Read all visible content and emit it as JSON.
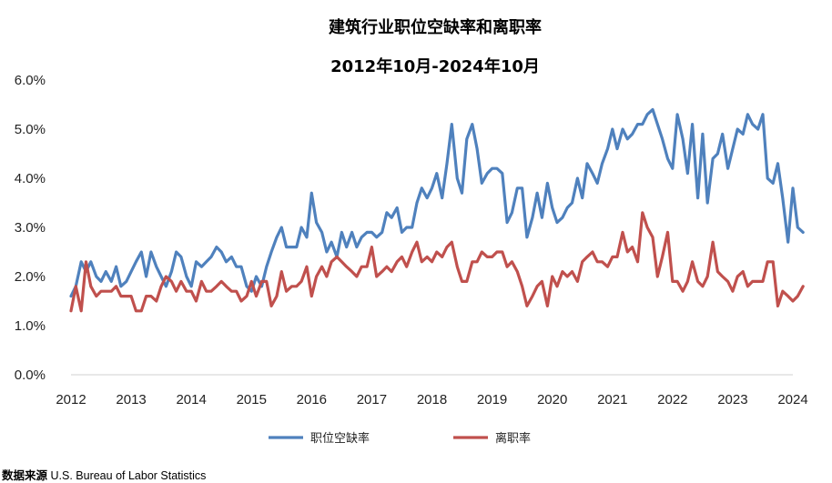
{
  "chart_data": {
    "type": "line",
    "title": "建筑行业职位空缺率和离职率",
    "subtitle": "2012年10月-2024年10月",
    "x_ticks": [
      "2012",
      "2013",
      "2014",
      "2015",
      "2016",
      "2017",
      "2018",
      "2019",
      "2020",
      "2021",
      "2022",
      "2023",
      "2024"
    ],
    "y_ticks": [
      "0.0%",
      "1.0%",
      "2.0%",
      "3.0%",
      "4.0%",
      "5.0%",
      "6.0%"
    ],
    "xlim": [
      2012.0,
      2024.0
    ],
    "ylim": [
      0,
      6
    ],
    "y_unit": "%",
    "grid": false,
    "legend_position": "bottom",
    "series": [
      {
        "name": "职位空缺率",
        "color": "#4F81BD",
        "points": [
          [
            2012.0,
            1.6
          ],
          [
            2012.08,
            1.8
          ],
          [
            2012.17,
            2.3
          ],
          [
            2012.25,
            2.1
          ],
          [
            2012.33,
            2.3
          ],
          [
            2012.42,
            2.0
          ],
          [
            2012.5,
            1.9
          ],
          [
            2012.58,
            2.1
          ],
          [
            2012.67,
            1.9
          ],
          [
            2012.75,
            2.2
          ],
          [
            2012.83,
            1.8
          ],
          [
            2012.92,
            1.9
          ],
          [
            2013.0,
            2.1
          ],
          [
            2013.08,
            2.3
          ],
          [
            2013.17,
            2.5
          ],
          [
            2013.25,
            2.0
          ],
          [
            2013.33,
            2.5
          ],
          [
            2013.42,
            2.2
          ],
          [
            2013.5,
            2.0
          ],
          [
            2013.58,
            1.8
          ],
          [
            2013.67,
            2.1
          ],
          [
            2013.75,
            2.5
          ],
          [
            2013.83,
            2.4
          ],
          [
            2013.92,
            2.0
          ],
          [
            2014.0,
            1.8
          ],
          [
            2014.08,
            2.3
          ],
          [
            2014.17,
            2.2
          ],
          [
            2014.25,
            2.3
          ],
          [
            2014.33,
            2.4
          ],
          [
            2014.42,
            2.6
          ],
          [
            2014.5,
            2.5
          ],
          [
            2014.58,
            2.3
          ],
          [
            2014.67,
            2.4
          ],
          [
            2014.75,
            2.2
          ],
          [
            2014.83,
            2.2
          ],
          [
            2014.92,
            1.8
          ],
          [
            2015.0,
            1.7
          ],
          [
            2015.08,
            2.0
          ],
          [
            2015.17,
            1.8
          ],
          [
            2015.25,
            2.2
          ],
          [
            2015.33,
            2.5
          ],
          [
            2015.42,
            2.8
          ],
          [
            2015.5,
            3.0
          ],
          [
            2015.58,
            2.6
          ],
          [
            2015.67,
            2.6
          ],
          [
            2015.75,
            2.6
          ],
          [
            2015.83,
            3.0
          ],
          [
            2015.92,
            2.8
          ],
          [
            2016.0,
            3.7
          ],
          [
            2016.08,
            3.1
          ],
          [
            2016.17,
            2.9
          ],
          [
            2016.25,
            2.5
          ],
          [
            2016.33,
            2.7
          ],
          [
            2016.42,
            2.4
          ],
          [
            2016.5,
            2.9
          ],
          [
            2016.58,
            2.6
          ],
          [
            2016.67,
            2.9
          ],
          [
            2016.75,
            2.6
          ],
          [
            2016.83,
            2.8
          ],
          [
            2016.92,
            2.9
          ],
          [
            2017.0,
            2.9
          ],
          [
            2017.08,
            2.8
          ],
          [
            2017.17,
            2.9
          ],
          [
            2017.25,
            3.3
          ],
          [
            2017.33,
            3.2
          ],
          [
            2017.42,
            3.4
          ],
          [
            2017.5,
            2.9
          ],
          [
            2017.58,
            3.0
          ],
          [
            2017.67,
            3.0
          ],
          [
            2017.75,
            3.5
          ],
          [
            2017.83,
            3.8
          ],
          [
            2017.92,
            3.6
          ],
          [
            2018.0,
            3.8
          ],
          [
            2018.08,
            4.1
          ],
          [
            2018.17,
            3.6
          ],
          [
            2018.25,
            4.3
          ],
          [
            2018.33,
            5.1
          ],
          [
            2018.42,
            4.0
          ],
          [
            2018.5,
            3.7
          ],
          [
            2018.58,
            4.8
          ],
          [
            2018.67,
            5.1
          ],
          [
            2018.75,
            4.6
          ],
          [
            2018.83,
            3.9
          ],
          [
            2018.92,
            4.1
          ],
          [
            2019.0,
            4.2
          ],
          [
            2019.08,
            4.2
          ],
          [
            2019.17,
            4.1
          ],
          [
            2019.25,
            3.1
          ],
          [
            2019.33,
            3.3
          ],
          [
            2019.42,
            3.8
          ],
          [
            2019.5,
            3.8
          ],
          [
            2019.58,
            2.8
          ],
          [
            2019.67,
            3.2
          ],
          [
            2019.75,
            3.7
          ],
          [
            2019.83,
            3.2
          ],
          [
            2019.92,
            3.9
          ],
          [
            2020.0,
            3.4
          ],
          [
            2020.08,
            3.1
          ],
          [
            2020.17,
            3.2
          ],
          [
            2020.25,
            3.4
          ],
          [
            2020.33,
            3.5
          ],
          [
            2020.42,
            4.0
          ],
          [
            2020.5,
            3.6
          ],
          [
            2020.58,
            4.3
          ],
          [
            2020.67,
            4.1
          ],
          [
            2020.75,
            3.9
          ],
          [
            2020.83,
            4.3
          ],
          [
            2020.92,
            4.6
          ],
          [
            2021.0,
            5.0
          ],
          [
            2021.08,
            4.6
          ],
          [
            2021.17,
            5.0
          ],
          [
            2021.25,
            4.8
          ],
          [
            2021.33,
            4.9
          ],
          [
            2021.42,
            5.1
          ],
          [
            2021.5,
            5.1
          ],
          [
            2021.58,
            5.3
          ],
          [
            2021.67,
            5.4
          ],
          [
            2021.75,
            5.1
          ],
          [
            2021.83,
            4.8
          ],
          [
            2021.92,
            4.4
          ],
          [
            2022.0,
            4.2
          ],
          [
            2022.08,
            5.3
          ],
          [
            2022.17,
            4.8
          ],
          [
            2022.25,
            4.1
          ],
          [
            2022.33,
            5.1
          ],
          [
            2022.42,
            3.6
          ],
          [
            2022.5,
            4.9
          ],
          [
            2022.58,
            3.5
          ],
          [
            2022.67,
            4.4
          ],
          [
            2022.75,
            4.5
          ],
          [
            2022.83,
            4.9
          ],
          [
            2022.92,
            4.2
          ],
          [
            2023.0,
            4.6
          ],
          [
            2023.08,
            5.0
          ],
          [
            2023.17,
            4.9
          ],
          [
            2023.25,
            5.3
          ],
          [
            2023.33,
            5.1
          ],
          [
            2023.42,
            5.0
          ],
          [
            2023.5,
            5.3
          ],
          [
            2023.58,
            4.0
          ],
          [
            2023.67,
            3.9
          ],
          [
            2023.75,
            4.3
          ],
          [
            2023.83,
            3.6
          ],
          [
            2023.92,
            2.7
          ],
          [
            2024.0,
            3.8
          ],
          [
            2024.08,
            3.0
          ],
          [
            2024.17,
            2.9
          ]
        ]
      },
      {
        "name": "离职率",
        "color": "#C0504D",
        "points": [
          [
            2012.0,
            1.3
          ],
          [
            2012.08,
            1.8
          ],
          [
            2012.17,
            1.3
          ],
          [
            2012.25,
            2.3
          ],
          [
            2012.33,
            1.8
          ],
          [
            2012.42,
            1.6
          ],
          [
            2012.5,
            1.7
          ],
          [
            2012.58,
            1.7
          ],
          [
            2012.67,
            1.7
          ],
          [
            2012.75,
            1.8
          ],
          [
            2012.83,
            1.6
          ],
          [
            2012.92,
            1.6
          ],
          [
            2013.0,
            1.6
          ],
          [
            2013.08,
            1.3
          ],
          [
            2013.17,
            1.3
          ],
          [
            2013.25,
            1.6
          ],
          [
            2013.33,
            1.6
          ],
          [
            2013.42,
            1.5
          ],
          [
            2013.5,
            1.8
          ],
          [
            2013.58,
            2.0
          ],
          [
            2013.67,
            1.9
          ],
          [
            2013.75,
            1.7
          ],
          [
            2013.83,
            1.9
          ],
          [
            2013.92,
            1.7
          ],
          [
            2014.0,
            1.7
          ],
          [
            2014.08,
            1.5
          ],
          [
            2014.17,
            1.9
          ],
          [
            2014.25,
            1.7
          ],
          [
            2014.33,
            1.7
          ],
          [
            2014.42,
            1.8
          ],
          [
            2014.5,
            1.9
          ],
          [
            2014.58,
            1.8
          ],
          [
            2014.67,
            1.7
          ],
          [
            2014.75,
            1.7
          ],
          [
            2014.83,
            1.5
          ],
          [
            2014.92,
            1.6
          ],
          [
            2015.0,
            1.9
          ],
          [
            2015.08,
            1.6
          ],
          [
            2015.17,
            1.9
          ],
          [
            2015.25,
            1.9
          ],
          [
            2015.33,
            1.4
          ],
          [
            2015.42,
            1.6
          ],
          [
            2015.5,
            2.1
          ],
          [
            2015.58,
            1.7
          ],
          [
            2015.67,
            1.8
          ],
          [
            2015.75,
            1.8
          ],
          [
            2015.83,
            1.9
          ],
          [
            2015.92,
            2.2
          ],
          [
            2016.0,
            1.6
          ],
          [
            2016.08,
            2.0
          ],
          [
            2016.17,
            2.2
          ],
          [
            2016.25,
            2.0
          ],
          [
            2016.33,
            2.3
          ],
          [
            2016.42,
            2.4
          ],
          [
            2016.5,
            2.3
          ],
          [
            2016.58,
            2.2
          ],
          [
            2016.67,
            2.1
          ],
          [
            2016.75,
            2.0
          ],
          [
            2016.83,
            2.2
          ],
          [
            2016.92,
            2.2
          ],
          [
            2017.0,
            2.6
          ],
          [
            2017.08,
            2.0
          ],
          [
            2017.17,
            2.1
          ],
          [
            2017.25,
            2.2
          ],
          [
            2017.33,
            2.1
          ],
          [
            2017.42,
            2.3
          ],
          [
            2017.5,
            2.4
          ],
          [
            2017.58,
            2.2
          ],
          [
            2017.67,
            2.5
          ],
          [
            2017.75,
            2.7
          ],
          [
            2017.83,
            2.3
          ],
          [
            2017.92,
            2.4
          ],
          [
            2018.0,
            2.3
          ],
          [
            2018.08,
            2.5
          ],
          [
            2018.17,
            2.4
          ],
          [
            2018.25,
            2.6
          ],
          [
            2018.33,
            2.7
          ],
          [
            2018.42,
            2.2
          ],
          [
            2018.5,
            1.9
          ],
          [
            2018.58,
            1.9
          ],
          [
            2018.67,
            2.3
          ],
          [
            2018.75,
            2.3
          ],
          [
            2018.83,
            2.5
          ],
          [
            2018.92,
            2.4
          ],
          [
            2019.0,
            2.4
          ],
          [
            2019.08,
            2.5
          ],
          [
            2019.17,
            2.5
          ],
          [
            2019.25,
            2.2
          ],
          [
            2019.33,
            2.3
          ],
          [
            2019.42,
            2.1
          ],
          [
            2019.5,
            1.8
          ],
          [
            2019.58,
            1.4
          ],
          [
            2019.67,
            1.6
          ],
          [
            2019.75,
            1.8
          ],
          [
            2019.83,
            1.9
          ],
          [
            2019.92,
            1.4
          ],
          [
            2020.0,
            2.0
          ],
          [
            2020.08,
            1.8
          ],
          [
            2020.17,
            2.1
          ],
          [
            2020.25,
            2.0
          ],
          [
            2020.33,
            2.1
          ],
          [
            2020.42,
            1.9
          ],
          [
            2020.5,
            2.3
          ],
          [
            2020.58,
            2.4
          ],
          [
            2020.67,
            2.5
          ],
          [
            2020.75,
            2.3
          ],
          [
            2020.83,
            2.3
          ],
          [
            2020.92,
            2.2
          ],
          [
            2021.0,
            2.4
          ],
          [
            2021.08,
            2.4
          ],
          [
            2021.17,
            2.9
          ],
          [
            2021.25,
            2.5
          ],
          [
            2021.33,
            2.6
          ],
          [
            2021.42,
            2.3
          ],
          [
            2021.5,
            3.3
          ],
          [
            2021.58,
            3.0
          ],
          [
            2021.67,
            2.8
          ],
          [
            2021.75,
            2.0
          ],
          [
            2021.83,
            2.4
          ],
          [
            2021.92,
            2.9
          ],
          [
            2022.0,
            1.9
          ],
          [
            2022.08,
            1.9
          ],
          [
            2022.17,
            1.7
          ],
          [
            2022.25,
            1.9
          ],
          [
            2022.33,
            2.3
          ],
          [
            2022.42,
            1.9
          ],
          [
            2022.5,
            1.8
          ],
          [
            2022.58,
            2.0
          ],
          [
            2022.67,
            2.7
          ],
          [
            2022.75,
            2.1
          ],
          [
            2022.83,
            2.0
          ],
          [
            2022.92,
            1.9
          ],
          [
            2023.0,
            1.7
          ],
          [
            2023.08,
            2.0
          ],
          [
            2023.17,
            2.1
          ],
          [
            2023.25,
            1.8
          ],
          [
            2023.33,
            1.9
          ],
          [
            2023.42,
            1.9
          ],
          [
            2023.5,
            1.9
          ],
          [
            2023.58,
            2.3
          ],
          [
            2023.67,
            2.3
          ],
          [
            2023.75,
            1.4
          ],
          [
            2023.83,
            1.7
          ],
          [
            2023.92,
            1.6
          ],
          [
            2024.0,
            1.5
          ],
          [
            2024.08,
            1.6
          ],
          [
            2024.17,
            1.8
          ]
        ]
      }
    ]
  },
  "source": {
    "label": "数据来源",
    "text": "U.S. Bureau of Labor Statistics"
  }
}
